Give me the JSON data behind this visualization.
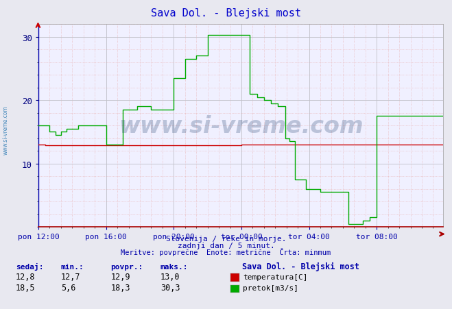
{
  "title": "Sava Dol. - Blejski most",
  "title_color": "#0000cc",
  "bg_color": "#e8e8f0",
  "plot_bg_color": "#f0f0ff",
  "ylabel_color": "#0000aa",
  "xlabel_color": "#0000aa",
  "ylim": [
    0,
    32
  ],
  "yticks": [
    10,
    20,
    30
  ],
  "x_labels": [
    "pon 12:00",
    "pon 16:00",
    "pon 20:00",
    "tor 00:00",
    "tor 04:00",
    "tor 08:00"
  ],
  "x_ticks_norm": [
    0.0,
    0.2,
    0.4,
    0.6,
    0.8,
    1.0
  ],
  "total_points": 288,
  "subtitle1": "Slovenija / reke in morje.",
  "subtitle2": "zadnji dan / 5 minut.",
  "subtitle3": "Meritve: povprečne  Enote: metrične  Črta: minmum",
  "footer_title": "Sava Dol. - Blejski most",
  "footer_col1_label": "sedaj:",
  "footer_col2_label": "min.:",
  "footer_col3_label": "povpr.:",
  "footer_col4_label": "maks.:",
  "temp_sedaj": "12,8",
  "temp_min": "12,7",
  "temp_povpr": "12,9",
  "temp_maks": "13,0",
  "pretok_sedaj": "18,5",
  "pretok_min": "5,6",
  "pretok_povpr": "18,3",
  "pretok_maks": "30,3",
  "temp_color": "#cc0000",
  "pretok_color": "#00aa00",
  "watermark_text": "www.si-vreme.com",
  "watermark_color": "#1a3a6a",
  "watermark_alpha": 0.25,
  "sivreme_sidebar": "www.si-vreme.com",
  "sidebar_color": "#4488bb"
}
